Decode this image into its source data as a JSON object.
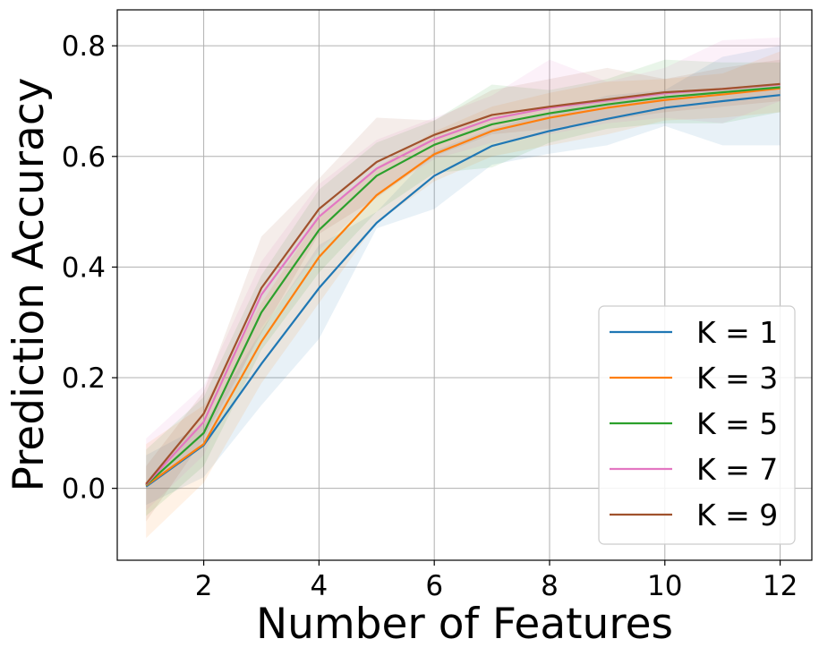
{
  "chart_data": {
    "type": "line",
    "title": "",
    "xlabel": "Number of Features",
    "ylabel": "Prediction Accuracy",
    "xlim": [
      0.5,
      12.55
    ],
    "ylim": [
      -0.13,
      0.865
    ],
    "xticks": [
      2,
      4,
      6,
      8,
      10,
      12
    ],
    "yticks": [
      0.0,
      0.2,
      0.4,
      0.6,
      0.8
    ],
    "xtick_labels": [
      "2",
      "4",
      "6",
      "8",
      "10",
      "12"
    ],
    "ytick_labels": [
      "0.0",
      "0.2",
      "0.4",
      "0.6",
      "0.8"
    ],
    "grid": true,
    "legend_position": "lower-right",
    "shaded_band": "variability band around each series",
    "x": [
      1,
      2,
      3,
      4,
      5,
      6,
      7,
      8,
      9,
      10,
      11,
      12
    ],
    "series": [
      {
        "name": "K = 1",
        "color": "#1f77b4",
        "values": [
          0.003,
          0.078,
          0.225,
          0.362,
          0.48,
          0.565,
          0.619,
          0.646,
          0.668,
          0.688,
          0.7,
          0.711
        ],
        "lower": [
          -0.03,
          0.02,
          0.15,
          0.27,
          0.47,
          0.505,
          0.585,
          0.605,
          0.62,
          0.655,
          0.62,
          0.62
        ],
        "upper": [
          0.06,
          0.115,
          0.285,
          0.44,
          0.5,
          0.61,
          0.65,
          0.68,
          0.71,
          0.72,
          0.78,
          0.8
        ]
      },
      {
        "name": "K = 3",
        "color": "#ff7f0e",
        "values": [
          0.005,
          0.08,
          0.265,
          0.418,
          0.53,
          0.604,
          0.646,
          0.67,
          0.688,
          0.702,
          0.712,
          0.723
        ],
        "lower": [
          -0.09,
          0.01,
          0.19,
          0.335,
          0.48,
          0.555,
          0.6,
          0.62,
          0.64,
          0.665,
          0.67,
          0.68
        ],
        "upper": [
          0.08,
          0.15,
          0.335,
          0.49,
          0.58,
          0.645,
          0.69,
          0.715,
          0.735,
          0.74,
          0.75,
          0.79
        ]
      },
      {
        "name": "K = 5",
        "color": "#2ca02c",
        "values": [
          0.006,
          0.1,
          0.318,
          0.467,
          0.565,
          0.621,
          0.658,
          0.678,
          0.694,
          0.707,
          0.716,
          0.725
        ],
        "lower": [
          -0.05,
          0.04,
          0.25,
          0.39,
          0.5,
          0.57,
          0.58,
          0.625,
          0.65,
          0.66,
          0.66,
          0.68
        ],
        "upper": [
          0.07,
          0.165,
          0.385,
          0.54,
          0.625,
          0.665,
          0.73,
          0.72,
          0.74,
          0.775,
          0.77,
          0.77
        ]
      },
      {
        "name": "K = 7",
        "color": "#e377c2",
        "values": [
          0.007,
          0.12,
          0.35,
          0.491,
          0.578,
          0.631,
          0.668,
          0.688,
          0.701,
          0.714,
          0.722,
          0.73
        ],
        "lower": [
          -0.04,
          0.06,
          0.29,
          0.43,
          0.53,
          0.595,
          0.625,
          0.64,
          0.66,
          0.67,
          0.66,
          0.7
        ],
        "upper": [
          0.09,
          0.185,
          0.41,
          0.55,
          0.63,
          0.67,
          0.71,
          0.775,
          0.735,
          0.76,
          0.81,
          0.815
        ]
      },
      {
        "name": "K = 9",
        "color": "#a0522d",
        "values": [
          0.008,
          0.135,
          0.362,
          0.505,
          0.59,
          0.639,
          0.675,
          0.69,
          0.703,
          0.716,
          0.722,
          0.731
        ],
        "lower": [
          -0.06,
          0.09,
          0.28,
          0.46,
          0.525,
          0.6,
          0.64,
          0.65,
          0.665,
          0.68,
          0.69,
          0.7
        ],
        "upper": [
          0.04,
          0.175,
          0.455,
          0.56,
          0.67,
          0.665,
          0.72,
          0.74,
          0.76,
          0.74,
          0.76,
          0.775
        ]
      }
    ]
  }
}
